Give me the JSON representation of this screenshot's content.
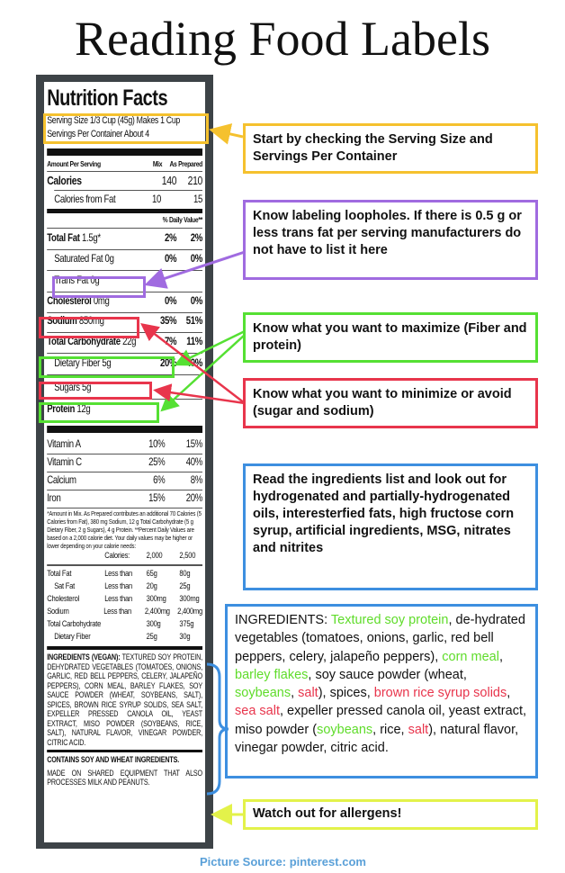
{
  "title": "Reading Food Labels",
  "label": {
    "heading": "Nutrition Facts",
    "serving_size": "Serving Size 1/3 Cup (45g) Makes 1 Cup",
    "servings_per_container": "Servings Per Container About 4",
    "col_header": {
      "name": "Amount Per Serving",
      "a": "Mix",
      "b": "As Prepared"
    },
    "calories": {
      "name": "Calories",
      "a": "140",
      "b": "210"
    },
    "calories_fat": {
      "name": "Calories from Fat",
      "a": "10",
      "b": "15"
    },
    "dv_header": "% Daily Value**",
    "rows": [
      {
        "name": "Total Fat",
        "amt": "1.5g*",
        "a": "2%",
        "b": "2%"
      },
      {
        "name": "Saturated Fat 0g",
        "amt": "",
        "a": "0%",
        "b": "0%"
      },
      {
        "name": "Trans Fat 0g",
        "amt": "",
        "a": "",
        "b": ""
      },
      {
        "name": "Cholesterol",
        "amt": "0mg",
        "a": "0%",
        "b": "0%"
      },
      {
        "name": "Sodium",
        "amt": "850mg",
        "a": "35%",
        "b": "51%"
      },
      {
        "name": "Total Carbohydrate",
        "amt": "22g",
        "a": "7%",
        "b": "11%"
      },
      {
        "name": "Dietary Fiber 5g",
        "amt": "",
        "a": "20%",
        "b": "40%"
      },
      {
        "name": "Sugars 5g",
        "amt": "",
        "a": "",
        "b": ""
      },
      {
        "name": "Protein",
        "amt": "12g",
        "a": "",
        "b": ""
      }
    ],
    "vitamins": [
      {
        "name": "Vitamin A",
        "a": "10%",
        "b": "15%"
      },
      {
        "name": "Vitamin C",
        "a": "25%",
        "b": "40%"
      },
      {
        "name": "Calcium",
        "a": "6%",
        "b": "8%"
      },
      {
        "name": "Iron",
        "a": "15%",
        "b": "20%"
      }
    ],
    "footnote": "*Amount in Mix. As Prepared contributes an additional 70 Calories (5 Calories from Fat), 380 mg Sodium, 12 g Total Carbohydrate (5 g Dietary Fiber, 2 g Sugars), 4 g Protein. **Percent Daily Values are based on a 2,000 calorie diet. Your daily values may be higher or lower depending on your calorie needs:",
    "cal_table": [
      [
        "",
        "Calories:",
        "2,000",
        "2,500"
      ],
      [
        "Total Fat",
        "Less than",
        "65g",
        "80g"
      ],
      [
        "  Sat Fat",
        "Less than",
        "20g",
        "25g"
      ],
      [
        "Cholesterol",
        "Less than",
        "300mg",
        "300mg"
      ],
      [
        "Sodium",
        "Less than",
        "2,400mg",
        "2,400mg"
      ],
      [
        "Total Carbohydrate",
        "",
        "300g",
        "375g"
      ],
      [
        "  Dietary Fiber",
        "",
        "25g",
        "30g"
      ]
    ],
    "ingredients_label": "Ingredients (Vegan):",
    "ingredients": "Textured soy protein, dehydrated vegetables (tomatoes, onions, garlic, red bell peppers, celery, jalapeño peppers), corn meal, barley flakes, soy sauce powder (wheat, soybeans, salt), spices, brown rice syrup solids, sea salt, expeller pressed canola oil, yeast extract, miso powder (soybeans, rice, salt), natural flavor, vinegar powder, citric acid.",
    "allergen": "CONTAINS SOY AND WHEAT INGREDIENTS.",
    "shared": "MADE ON SHARED EQUIPMENT THAT ALSO PROCESSES MILK AND PEANUTS."
  },
  "callouts": {
    "serving": "Start by checking the Serving Size and Servings Per Container",
    "loopholes": "Know labeling loopholes. If there is 0.5 g or less trans fat per serving manufacturers do not have to list it here",
    "maximize": "Know what you want to maximize (Fiber and protein)",
    "minimize": "Know what you want to minimize or avoid (sugar and sodium)",
    "ingredients": "Read the ingredients list and look out for hydrogenated and partially-hydrogenated oils, interesterfied fats, high fructose corn syrup, artificial ingredients, MSG, nitrates and nitrites",
    "allergens": "Watch out for allergens!"
  },
  "ingredients_box": [
    {
      "t": "INGREDIENTS: ",
      "c": "#111"
    },
    {
      "t": "Textured soy protein",
      "c": "#5fdc2a"
    },
    {
      "t": ", de-hydrated vegetables (tomatoes, onions, garlic, red bell peppers, celery, jalapeño peppers), ",
      "c": "#111"
    },
    {
      "t": "corn meal",
      "c": "#5fdc2a"
    },
    {
      "t": ", ",
      "c": "#111"
    },
    {
      "t": "barley flakes",
      "c": "#5fdc2a"
    },
    {
      "t": ", soy sauce powder (wheat, ",
      "c": "#111"
    },
    {
      "t": "soybeans",
      "c": "#5fdc2a"
    },
    {
      "t": ", ",
      "c": "#111"
    },
    {
      "t": "salt",
      "c": "#e8354c"
    },
    {
      "t": "), spices, ",
      "c": "#111"
    },
    {
      "t": "brown rice syrup solids",
      "c": "#e8354c"
    },
    {
      "t": ", ",
      "c": "#111"
    },
    {
      "t": "sea salt",
      "c": "#e8354c"
    },
    {
      "t": ", expeller pressed canola oil, yeast extract, miso powder (",
      "c": "#111"
    },
    {
      "t": "soybeans",
      "c": "#5fdc2a"
    },
    {
      "t": ", rice, ",
      "c": "#111"
    },
    {
      "t": "salt",
      "c": "#e8354c"
    },
    {
      "t": "), natural flavor, vinegar powder, citric acid.",
      "c": "#111"
    }
  ],
  "source": "Picture Source: pinterest.com",
  "colors": {
    "yellow": "#f5c12e",
    "purple": "#a06be0",
    "green": "#55e033",
    "red": "#e8354c",
    "blue": "#3d8fe0",
    "lime": "#e3f24a"
  }
}
